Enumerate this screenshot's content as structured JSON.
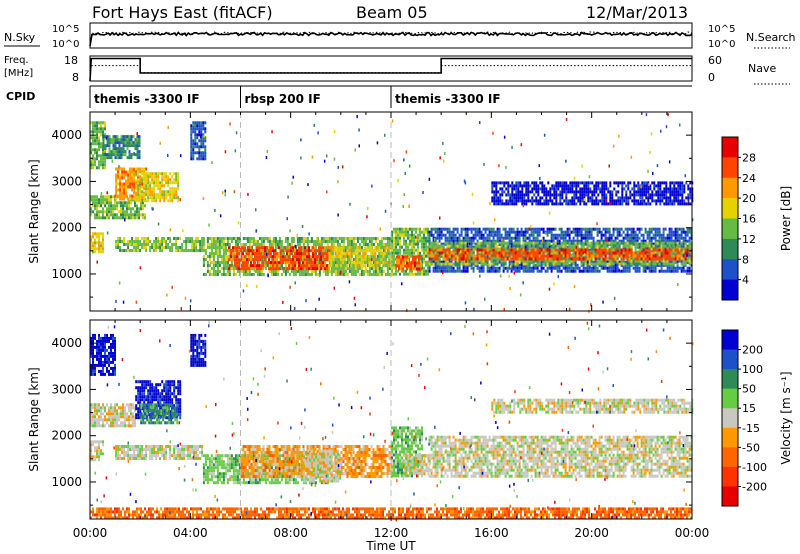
{
  "header": {
    "station": "Fort Hays East (fitACF)",
    "beam": "Beam 05",
    "date": "12/Mar/2013"
  },
  "aux_panels": {
    "noise": {
      "label": "N.Sky",
      "right_label": "N.Search",
      "tick_top": "10^5",
      "tick_bottom": "10^0",
      "ylim": [
        0,
        5
      ]
    },
    "freq": {
      "label_line1": "Freq.",
      "label_line2": "[MHz]",
      "ticks": [
        "18",
        "8"
      ],
      "ylim": [
        8,
        18
      ],
      "right_label": "Nave",
      "right_ticks": [
        "60",
        "0"
      ],
      "right_ylim": [
        0,
        60
      ]
    },
    "cpid": {
      "label": "CPID",
      "segments": [
        {
          "label": "themis -3300 IF",
          "start_h": 0,
          "end_h": 6
        },
        {
          "label": "rbsp 200 IF",
          "start_h": 6,
          "end_h": 12
        },
        {
          "label": "themis -3300 IF",
          "start_h": 12,
          "end_h": 24
        }
      ]
    }
  },
  "x_axis": {
    "label": "Time UT",
    "tick_labels": [
      "00:00",
      "04:00",
      "08:00",
      "12:00",
      "16:00",
      "20:00",
      "00:00"
    ],
    "tick_hours": [
      0,
      4,
      8,
      12,
      16,
      20,
      24
    ],
    "xlim_hours": [
      0,
      24
    ]
  },
  "chart_data": [
    {
      "type": "heatmap",
      "name": "power",
      "ylabel": "Slant Range [km]",
      "y_ticks": [
        1000,
        2000,
        3000,
        4000
      ],
      "ylim": [
        200,
        4500
      ],
      "xlim_hours": [
        0,
        24
      ],
      "colorbar": {
        "label": "Power [dB]",
        "tick_labels": [
          "4",
          "8",
          "12",
          "16",
          "20",
          "24",
          "28"
        ],
        "colors": [
          "#0000d0",
          "#1e50c8",
          "#2e8b57",
          "#66bb44",
          "#e6d200",
          "#ff9900",
          "#ff4400",
          "#e60000"
        ]
      },
      "regions": [
        {
          "t0": 0.0,
          "t1": 0.5,
          "r0": 1500,
          "r1": 1900,
          "level": 4
        },
        {
          "t0": 0.0,
          "t1": 0.6,
          "r0": 3300,
          "r1": 4300,
          "level": 3
        },
        {
          "t0": 0.0,
          "t1": 2.2,
          "r0": 2200,
          "r1": 2700,
          "level": 3
        },
        {
          "t0": 1.0,
          "t1": 2.2,
          "r0": 2600,
          "r1": 3300,
          "level": 5
        },
        {
          "t0": 0.5,
          "t1": 2.0,
          "r0": 3500,
          "r1": 4000,
          "level": 2
        },
        {
          "t0": 1.8,
          "t1": 3.5,
          "r0": 2600,
          "r1": 3200,
          "level": 4
        },
        {
          "t0": 1.0,
          "t1": 4.5,
          "r0": 1500,
          "r1": 1800,
          "level": 3
        },
        {
          "t0": 4.5,
          "t1": 12.0,
          "r0": 1000,
          "r1": 1800,
          "level": 3
        },
        {
          "t0": 5.5,
          "t1": 9.5,
          "r0": 1100,
          "r1": 1600,
          "level": 6
        },
        {
          "t0": 9.5,
          "t1": 12.0,
          "r0": 1200,
          "r1": 1600,
          "level": 4
        },
        {
          "t0": 12.0,
          "t1": 13.5,
          "r0": 1000,
          "r1": 2000,
          "level": 3
        },
        {
          "t0": 12.2,
          "t1": 13.2,
          "r0": 1100,
          "r1": 1400,
          "level": 6
        },
        {
          "t0": 13.5,
          "t1": 24.0,
          "r0": 1050,
          "r1": 2000,
          "level": 1
        },
        {
          "t0": 13.5,
          "t1": 24.0,
          "r0": 1200,
          "r1": 1700,
          "level": 3
        },
        {
          "t0": 13.5,
          "t1": 24.0,
          "r0": 1350,
          "r1": 1550,
          "level": 6
        },
        {
          "t0": 16.0,
          "t1": 24.0,
          "r0": 2500,
          "r1": 3000,
          "level": 0
        },
        {
          "t0": 4.0,
          "t1": 4.6,
          "r0": 3500,
          "r1": 4300,
          "level": 1
        }
      ]
    },
    {
      "type": "heatmap",
      "name": "velocity",
      "ylabel": "Slant Range [km]",
      "y_ticks": [
        1000,
        2000,
        3000,
        4000
      ],
      "ylim": [
        200,
        4500
      ],
      "xlim_hours": [
        0,
        24
      ],
      "colorbar": {
        "label": "Velocity [m s⁻¹]",
        "tick_labels": [
          "200",
          "100",
          "50",
          "15",
          "-15",
          "-50",
          "-100",
          "-200"
        ],
        "colors": [
          "#0000d0",
          "#1e50c8",
          "#2e8b57",
          "#66cc44",
          "#c8c8c0",
          "#ff9900",
          "#ff6600",
          "#ff3300",
          "#e60000"
        ]
      },
      "regions": [
        {
          "t0": 0.0,
          "t1": 0.5,
          "r0": 1500,
          "r1": 1900,
          "level": 4
        },
        {
          "t0": 0.0,
          "t1": 1.8,
          "r0": 2200,
          "r1": 2700,
          "level": 4
        },
        {
          "t0": 0.0,
          "t1": 1.0,
          "r0": 3300,
          "r1": 4200,
          "level": 0
        },
        {
          "t0": 1.8,
          "t1": 3.6,
          "r0": 2400,
          "r1": 3200,
          "level": 0
        },
        {
          "t0": 2.0,
          "t1": 3.5,
          "r0": 2300,
          "r1": 2700,
          "level": 2
        },
        {
          "t0": 1.0,
          "t1": 4.5,
          "r0": 1500,
          "r1": 1800,
          "level": 4
        },
        {
          "t0": 4.5,
          "t1": 9.5,
          "r0": 1000,
          "r1": 1600,
          "level": 3
        },
        {
          "t0": 6.0,
          "t1": 12.0,
          "r0": 1100,
          "r1": 1800,
          "level": 5
        },
        {
          "t0": 8.5,
          "t1": 10.0,
          "r0": 1000,
          "r1": 1700,
          "level": 4
        },
        {
          "t0": 12.0,
          "t1": 13.2,
          "r0": 1100,
          "r1": 2200,
          "level": 3
        },
        {
          "t0": 12.5,
          "t1": 13.5,
          "r0": 1200,
          "r1": 1600,
          "level": 4
        },
        {
          "t0": 13.5,
          "t1": 24.0,
          "r0": 1100,
          "r1": 2000,
          "level": 4
        },
        {
          "t0": 16.0,
          "t1": 24.0,
          "r0": 2500,
          "r1": 2800,
          "level": 4
        },
        {
          "t0": 4.0,
          "t1": 4.6,
          "r0": 3500,
          "r1": 4200,
          "level": 0
        },
        {
          "t0": 0.0,
          "t1": 24.0,
          "r0": 200,
          "r1": 450,
          "level": 6
        }
      ]
    }
  ]
}
